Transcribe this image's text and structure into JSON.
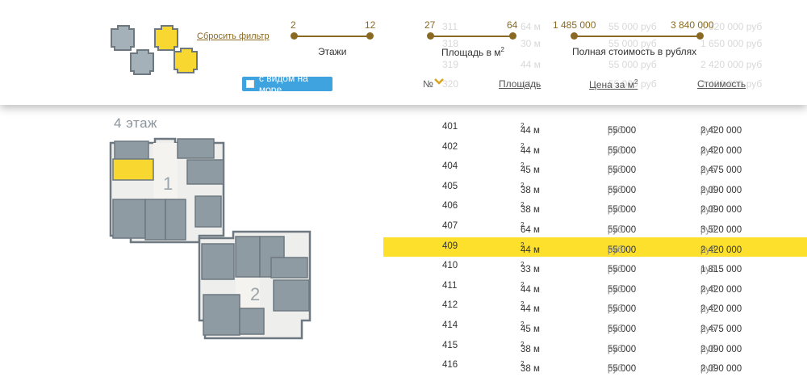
{
  "filters": {
    "reset_label": "Сбросить фильтр",
    "floors": {
      "min": "2",
      "max": "12",
      "label": "Этажи"
    },
    "area": {
      "min": "27",
      "max": "64",
      "label": "Площадь в м",
      "unit_sup": "2"
    },
    "price": {
      "min": "1 485 000",
      "max": "3 840 000",
      "label": "Полная стоимость в рублях"
    },
    "sea_view_label": "с видом на море"
  },
  "ghost_rows": [
    {
      "num": "311",
      "area": "64 м",
      "price": "55 000 руб",
      "total": "3 520 000 руб"
    },
    {
      "num": "318",
      "area": "30 м",
      "price": "55 000 руб",
      "total": "1 650 000 руб"
    },
    {
      "num": "319",
      "area": "44 м",
      "price": "55 000 руб",
      "total": "2 420 000 руб"
    },
    {
      "num": "320",
      "area": "44 м",
      "price": "55 000 руб",
      "total": "2 420 000 руб"
    }
  ],
  "columns": {
    "num": "№",
    "area": "Площадь",
    "price": "Цена за м",
    "price_sup": "2",
    "total": "Стоимость"
  },
  "floor_title": "4 этаж",
  "sections": {
    "s1": "1",
    "s2": "2"
  },
  "rows": [
    {
      "num": "401",
      "area": "44 м",
      "price": "55 000",
      "total": "2 420 000",
      "highlight": false
    },
    {
      "num": "402",
      "area": "44 м",
      "price": "55 000",
      "total": "2 420 000",
      "highlight": false
    },
    {
      "num": "404",
      "area": "45 м",
      "price": "55 000",
      "total": "2 475 000",
      "highlight": false
    },
    {
      "num": "405",
      "area": "38 м",
      "price": "55 000",
      "total": "2 090 000",
      "highlight": false
    },
    {
      "num": "406",
      "area": "38 м",
      "price": "55 000",
      "total": "2 090 000",
      "highlight": false
    },
    {
      "num": "407",
      "area": "64 м",
      "price": "55 000",
      "total": "3 520 000",
      "highlight": false
    },
    {
      "num": "409",
      "area": "44 м",
      "price": "55 000",
      "total": "2 420 000",
      "highlight": true
    },
    {
      "num": "410",
      "area": "33 м",
      "price": "55 000",
      "total": "1 815 000",
      "highlight": false
    },
    {
      "num": "411",
      "area": "44 м",
      "price": "55 000",
      "total": "2 420 000",
      "highlight": false
    },
    {
      "num": "412",
      "area": "44 м",
      "price": "55 000",
      "total": "2 420 000",
      "highlight": false
    },
    {
      "num": "414",
      "area": "45 м",
      "price": "55 000",
      "total": "2 475 000",
      "highlight": false
    },
    {
      "num": "415",
      "area": "38 м",
      "price": "55 000",
      "total": "2 090 000",
      "highlight": false
    },
    {
      "num": "416",
      "area": "38 м",
      "price": "55 000",
      "total": "2 090 000",
      "highlight": false
    }
  ],
  "row_units": {
    "area_sup": "2",
    "currency": "руб"
  },
  "colors": {
    "accent": "#8a6a22",
    "highlight": "#fde02b",
    "sea_button": "#3fa3df",
    "unit_fill": "#8f9ba3"
  }
}
